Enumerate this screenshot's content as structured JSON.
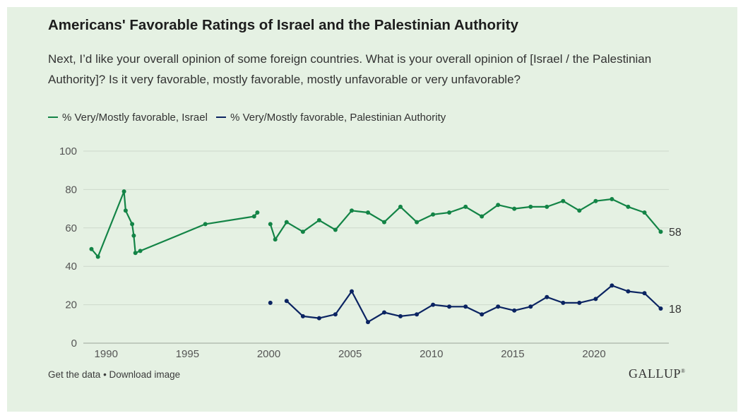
{
  "header": {
    "title": "Americans' Favorable Ratings of Israel and the Palestinian Authority",
    "subtitle": "Next, I’d like your overall opinion of some foreign countries. What is your overall opinion of [Israel / the Palestinian Authority]? Is it very favorable, mostly favorable, mostly unfavorable or very unfavorable?"
  },
  "footer": {
    "get_data": "Get the data",
    "separator": " • ",
    "download": "Download image",
    "logo": "GALLUP",
    "logo_mark": "®"
  },
  "colors": {
    "israel": "#138446",
    "palestinian_authority": "#0b2462",
    "background": "#e5f1e3",
    "grid": "#cdd8cb"
  },
  "chart_data": {
    "type": "line",
    "title": "Americans' Favorable Ratings of Israel and the Palestinian Authority",
    "xlabel": "",
    "ylabel": "",
    "xlim": [
      1988.6,
      2024.6
    ],
    "ylim": [
      0,
      100
    ],
    "yticks": [
      0,
      20,
      40,
      60,
      80,
      100
    ],
    "xticks": [
      1990,
      1995,
      2000,
      2005,
      2010,
      2015,
      2020
    ],
    "grid": true,
    "legend": "top-left",
    "series": [
      {
        "name": "% Very/Mostly favorable, Israel",
        "color": "#138446",
        "segments": [
          [
            [
              1989.1,
              49
            ],
            [
              1989.5,
              45
            ],
            [
              1991.1,
              79
            ],
            [
              1991.2,
              69
            ],
            [
              1991.6,
              62
            ],
            [
              1991.7,
              56
            ],
            [
              1991.8,
              47
            ],
            [
              1992.1,
              48
            ],
            [
              1996.1,
              62
            ],
            [
              1999.1,
              66
            ],
            [
              1999.3,
              68
            ]
          ],
          [
            [
              2000.1,
              62
            ],
            [
              2000.4,
              54
            ],
            [
              2001.1,
              63
            ],
            [
              2002.1,
              58
            ],
            [
              2003.1,
              64
            ],
            [
              2004.1,
              59
            ],
            [
              2005.1,
              69
            ],
            [
              2006.1,
              68
            ],
            [
              2007.1,
              63
            ],
            [
              2008.1,
              71
            ],
            [
              2009.1,
              63
            ],
            [
              2010.1,
              67
            ],
            [
              2011.1,
              68
            ],
            [
              2012.1,
              71
            ],
            [
              2013.1,
              66
            ],
            [
              2014.1,
              72
            ],
            [
              2015.1,
              70
            ],
            [
              2016.1,
              71
            ],
            [
              2017.1,
              71
            ],
            [
              2018.1,
              74
            ],
            [
              2019.1,
              69
            ],
            [
              2020.1,
              74
            ],
            [
              2021.1,
              75
            ],
            [
              2022.1,
              71
            ],
            [
              2023.1,
              68
            ],
            [
              2024.1,
              58
            ]
          ]
        ],
        "end_label": "58"
      },
      {
        "name": "% Very/Mostly favorable, Palestinian Authority",
        "color": "#0b2462",
        "segments": [
          [
            [
              2000.1,
              21
            ]
          ],
          [
            [
              2001.1,
              22
            ],
            [
              2002.1,
              14
            ],
            [
              2003.1,
              13
            ],
            [
              2004.1,
              15
            ],
            [
              2005.1,
              27
            ],
            [
              2006.1,
              11
            ],
            [
              2007.1,
              16
            ],
            [
              2008.1,
              14
            ],
            [
              2009.1,
              15
            ],
            [
              2010.1,
              20
            ],
            [
              2011.1,
              19
            ],
            [
              2012.1,
              19
            ],
            [
              2013.1,
              15
            ],
            [
              2014.1,
              19
            ],
            [
              2015.1,
              17
            ],
            [
              2016.1,
              19
            ],
            [
              2017.1,
              24
            ],
            [
              2018.1,
              21
            ],
            [
              2019.1,
              21
            ],
            [
              2020.1,
              23
            ],
            [
              2021.1,
              30
            ],
            [
              2022.1,
              27
            ],
            [
              2023.1,
              26
            ],
            [
              2024.1,
              18
            ]
          ]
        ],
        "end_label": "18"
      }
    ]
  }
}
